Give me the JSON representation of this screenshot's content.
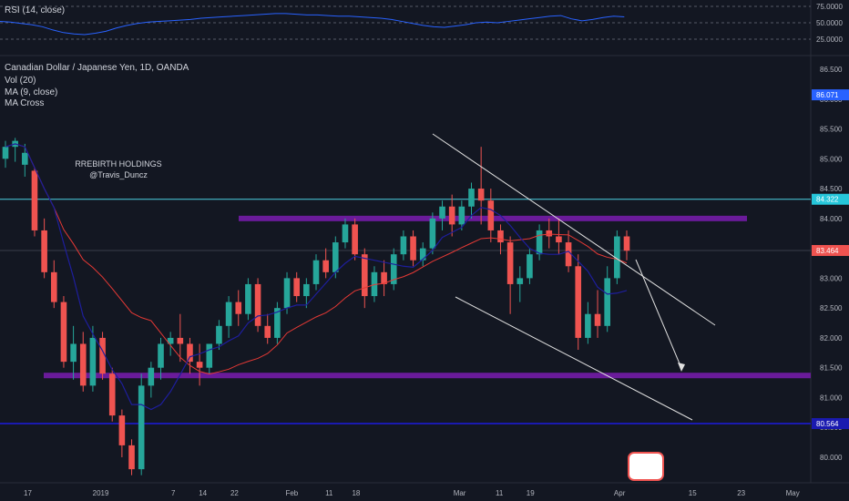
{
  "rsi_legend": "RSI (14, close)",
  "main_legend": {
    "instrument": "Canadian Dollar / Japanese Yen, 1D, OANDA",
    "vol": "Vol (20)",
    "ma": "MA (9, close)",
    "ma_cross": "MA Cross"
  },
  "watermark": {
    "line1": "RREBIRTH HOLDINGS",
    "line2": "@Travis_Duncz"
  },
  "colors": {
    "bg": "#131722",
    "up": "#26a69a",
    "down": "#ef5350",
    "ma_fast": "#1e1e9c",
    "ma_slow": "#e53935",
    "purple": "#6a1b9a",
    "cyan": "#4dd0e1",
    "blue": "#1a1ab0",
    "rsi_line": "#2962ff",
    "axis_text": "#b2b5be"
  },
  "chart_data": {
    "type": "candlestick",
    "rsi_axis": {
      "ticks": [
        "75.0000",
        "50.0000",
        "25.0000"
      ],
      "values": [
        75,
        50,
        25
      ]
    },
    "y_axis": {
      "ticks": [
        "86.500",
        "86.000",
        "85.500",
        "85.000",
        "84.500",
        "84.000",
        "83.500",
        "83.000",
        "82.500",
        "82.000",
        "81.500",
        "81.000",
        "80.500",
        "80.000"
      ],
      "values": [
        86.5,
        86.0,
        85.5,
        85.0,
        84.5,
        84.0,
        83.5,
        83.0,
        82.5,
        82.0,
        81.5,
        81.0,
        80.5,
        80.0
      ]
    },
    "x_axis": {
      "labels": [
        "17",
        "2019",
        "7",
        "14",
        "22",
        "Feb",
        "11",
        "18",
        "Mar",
        "11",
        "19",
        "Apr",
        "15",
        "23",
        "May"
      ],
      "positions": [
        0.0,
        8.5,
        18.2,
        21.6,
        25.5,
        32.3,
        37.2,
        40.5,
        53.0,
        58.2,
        62.0,
        72.8,
        82.0,
        88.0,
        94.0
      ]
    },
    "price_labels": [
      {
        "text": "86.071",
        "value": 86.071,
        "color": "#2962ff"
      },
      {
        "text": "84.322",
        "value": 84.322,
        "color": "#26c6da"
      },
      {
        "text": "83.464",
        "value": 83.464,
        "color": "#ef5350"
      },
      {
        "text": "80.564",
        "value": 80.564,
        "color": "#1a1ab0"
      }
    ],
    "levels": {
      "resistance": 84.0,
      "support": 81.37,
      "cyan": 84.322,
      "blue": 80.564,
      "grey": 83.464
    },
    "rsi": [
      52,
      51,
      49,
      47,
      44,
      39,
      35,
      33,
      32,
      34,
      37,
      42,
      46,
      49,
      51,
      52,
      53,
      54,
      55,
      57,
      58,
      59,
      60,
      61,
      62,
      63,
      64,
      64,
      63,
      62,
      62,
      61,
      60,
      60,
      59,
      58,
      57,
      55,
      52,
      49,
      46,
      44,
      43,
      45,
      47,
      50,
      51,
      50,
      52,
      54,
      56,
      58,
      60,
      61,
      56,
      53,
      55,
      58,
      60,
      59
    ],
    "candles": [
      [
        85.0,
        85.3,
        85.2,
        84.85
      ],
      [
        85.2,
        85.35,
        85.3,
        84.95
      ],
      [
        84.9,
        85.25,
        85.1,
        84.7
      ],
      [
        84.8,
        84.85,
        83.8,
        83.7
      ],
      [
        83.8,
        84.0,
        83.1,
        83.0
      ],
      [
        83.1,
        83.3,
        82.6,
        82.5
      ],
      [
        82.6,
        82.7,
        81.6,
        81.5
      ],
      [
        81.6,
        82.2,
        81.9,
        81.3
      ],
      [
        81.9,
        82.1,
        81.2,
        81.1
      ],
      [
        81.2,
        82.2,
        82.0,
        81.1
      ],
      [
        82.0,
        82.1,
        81.4,
        81.3
      ],
      [
        81.4,
        81.5,
        80.7,
        80.6
      ],
      [
        80.7,
        80.8,
        80.2,
        80.0
      ],
      [
        80.2,
        80.3,
        79.8,
        79.7
      ],
      [
        79.8,
        81.4,
        81.2,
        79.7
      ],
      [
        81.2,
        81.6,
        81.5,
        81.0
      ],
      [
        81.5,
        82.0,
        81.9,
        81.3
      ],
      [
        81.9,
        82.1,
        82.0,
        81.7
      ],
      [
        82.0,
        82.4,
        81.9,
        81.6
      ],
      [
        81.9,
        82.0,
        81.6,
        81.4
      ],
      [
        81.6,
        81.9,
        81.5,
        81.2
      ],
      [
        81.5,
        81.8,
        81.9,
        81.4
      ],
      [
        81.9,
        82.3,
        82.2,
        81.8
      ],
      [
        82.2,
        82.7,
        82.6,
        82.0
      ],
      [
        82.6,
        82.8,
        82.4,
        82.2
      ],
      [
        82.4,
        83.0,
        82.9,
        82.3
      ],
      [
        82.9,
        83.0,
        82.2,
        82.1
      ],
      [
        82.2,
        82.4,
        82.0,
        81.9
      ],
      [
        82.0,
        82.6,
        82.5,
        81.9
      ],
      [
        82.5,
        83.1,
        83.0,
        82.4
      ],
      [
        83.0,
        83.1,
        82.7,
        82.6
      ],
      [
        82.7,
        83.0,
        82.9,
        82.5
      ],
      [
        82.9,
        83.4,
        83.3,
        82.8
      ],
      [
        83.3,
        83.5,
        83.1,
        83.0
      ],
      [
        83.1,
        83.7,
        83.6,
        83.0
      ],
      [
        83.6,
        84.0,
        83.9,
        83.5
      ],
      [
        83.9,
        84.0,
        83.4,
        83.3
      ],
      [
        83.4,
        83.5,
        82.7,
        82.5
      ],
      [
        82.7,
        83.2,
        83.1,
        82.6
      ],
      [
        83.1,
        83.3,
        82.9,
        82.7
      ],
      [
        82.9,
        83.5,
        83.4,
        82.8
      ],
      [
        83.4,
        83.8,
        83.7,
        83.3
      ],
      [
        83.7,
        83.8,
        83.3,
        83.2
      ],
      [
        83.3,
        83.6,
        83.5,
        83.2
      ],
      [
        83.5,
        84.1,
        84.0,
        83.4
      ],
      [
        84.0,
        84.3,
        84.2,
        83.8
      ],
      [
        84.2,
        84.4,
        83.9,
        83.7
      ],
      [
        83.9,
        84.3,
        84.2,
        83.8
      ],
      [
        84.2,
        84.6,
        84.5,
        84.0
      ],
      [
        84.5,
        85.2,
        84.3,
        83.9
      ],
      [
        84.3,
        84.5,
        83.8,
        83.6
      ],
      [
        83.8,
        83.9,
        83.6,
        83.4
      ],
      [
        83.6,
        83.7,
        82.9,
        82.4
      ],
      [
        82.9,
        83.2,
        83.0,
        82.6
      ],
      [
        83.0,
        83.5,
        83.4,
        82.9
      ],
      [
        83.4,
        83.9,
        83.8,
        83.3
      ],
      [
        83.8,
        84.0,
        83.7,
        83.5
      ],
      [
        83.7,
        84.0,
        83.6,
        83.4
      ],
      [
        83.6,
        83.8,
        83.2,
        83.1
      ],
      [
        83.2,
        83.4,
        82.0,
        81.8
      ],
      [
        82.0,
        82.6,
        82.4,
        81.9
      ],
      [
        82.4,
        82.8,
        82.2,
        82.0
      ],
      [
        82.2,
        83.2,
        83.0,
        82.1
      ],
      [
        83.0,
        83.8,
        83.7,
        82.9
      ],
      [
        83.7,
        83.8,
        83.46,
        83.3
      ]
    ]
  }
}
